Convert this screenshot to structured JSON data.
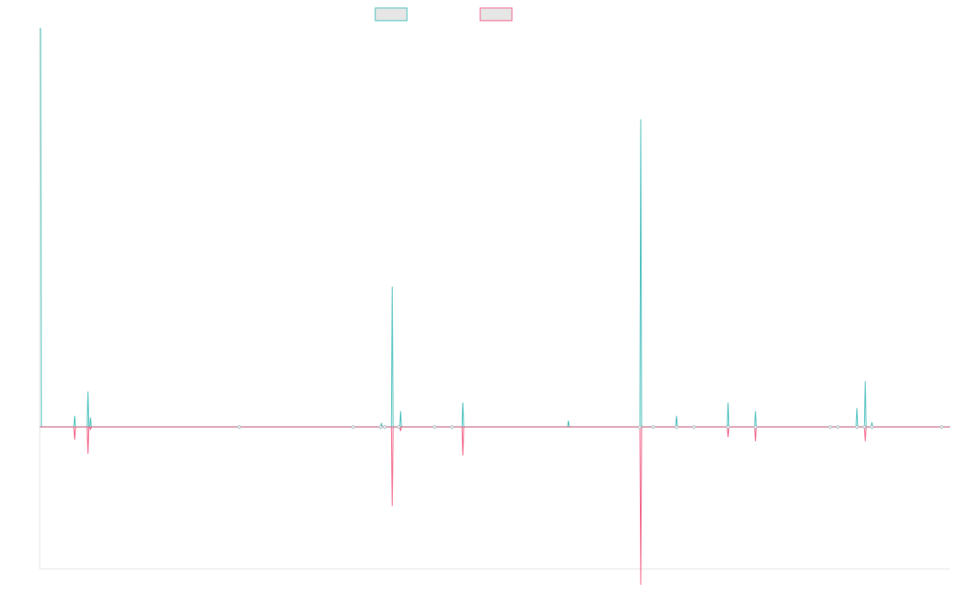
{
  "colors": {
    "series_a_stroke": "#36b9b6",
    "series_b_stroke": "#f0507a",
    "legend_fill": "#e6e6e6",
    "axis": "#e0e0e0",
    "baseline": "#9aaab0"
  },
  "chart_data": {
    "type": "line",
    "title": "",
    "xlabel": "",
    "ylabel": "",
    "grid": false,
    "legend_placement": "top-center",
    "xlim": [
      0,
      1095
    ],
    "ylim": [
      -180,
      505
    ],
    "series": [
      {
        "color": "#36b9b6",
        "points": [
          [
            0,
            505
          ],
          [
            1,
            505
          ],
          [
            2,
            0
          ],
          [
            41,
            0
          ],
          [
            42,
            14
          ],
          [
            43,
            0
          ],
          [
            57,
            0
          ],
          [
            58,
            45
          ],
          [
            59,
            0
          ],
          [
            60,
            0
          ],
          [
            61,
            12
          ],
          [
            62,
            0
          ],
          [
            240,
            0
          ],
          [
            241,
            1
          ],
          [
            242,
            0
          ],
          [
            410,
            0
          ],
          [
            411,
            5
          ],
          [
            412,
            0
          ],
          [
            423,
            0
          ],
          [
            424,
            178
          ],
          [
            425,
            0
          ],
          [
            433,
            0
          ],
          [
            434,
            20
          ],
          [
            435,
            0
          ],
          [
            508,
            0
          ],
          [
            509,
            31
          ],
          [
            510,
            0
          ],
          [
            635,
            0
          ],
          [
            636,
            8
          ],
          [
            637,
            0
          ],
          [
            722,
            0
          ],
          [
            723,
            390
          ],
          [
            724,
            0
          ],
          [
            765,
            0
          ],
          [
            766,
            14
          ],
          [
            767,
            0
          ],
          [
            827,
            0
          ],
          [
            828,
            31
          ],
          [
            829,
            0
          ],
          [
            860,
            0
          ],
          [
            861,
            20
          ],
          [
            862,
            0
          ],
          [
            982,
            0
          ],
          [
            983,
            24
          ],
          [
            984,
            0
          ],
          [
            992,
            0
          ],
          [
            993,
            58
          ],
          [
            994,
            0
          ],
          [
            1000,
            0
          ],
          [
            1001,
            6
          ],
          [
            1002,
            0
          ],
          [
            1095,
            0
          ]
        ]
      },
      {
        "color": "#f0507a",
        "points": [
          [
            0,
            0
          ],
          [
            41,
            0
          ],
          [
            42,
            -16
          ],
          [
            43,
            0
          ],
          [
            57,
            0
          ],
          [
            58,
            -34
          ],
          [
            59,
            0
          ],
          [
            60,
            0
          ],
          [
            61,
            -3
          ],
          [
            62,
            0
          ],
          [
            423,
            0
          ],
          [
            424,
            -100
          ],
          [
            425,
            0
          ],
          [
            433,
            0
          ],
          [
            434,
            -5
          ],
          [
            435,
            0
          ],
          [
            508,
            0
          ],
          [
            509,
            -36
          ],
          [
            510,
            0
          ],
          [
            722,
            0
          ],
          [
            723,
            -200
          ],
          [
            724,
            0
          ],
          [
            827,
            0
          ],
          [
            828,
            -13
          ],
          [
            829,
            0
          ],
          [
            860,
            0
          ],
          [
            861,
            -18
          ],
          [
            862,
            0
          ],
          [
            992,
            0
          ],
          [
            993,
            -18
          ],
          [
            994,
            0
          ],
          [
            1095,
            0
          ]
        ]
      }
    ],
    "markers": [
      240,
      377,
      410,
      415,
      432,
      475,
      496,
      722,
      738,
      766,
      787,
      828,
      861,
      951,
      960,
      983,
      992,
      1001,
      1085
    ]
  }
}
